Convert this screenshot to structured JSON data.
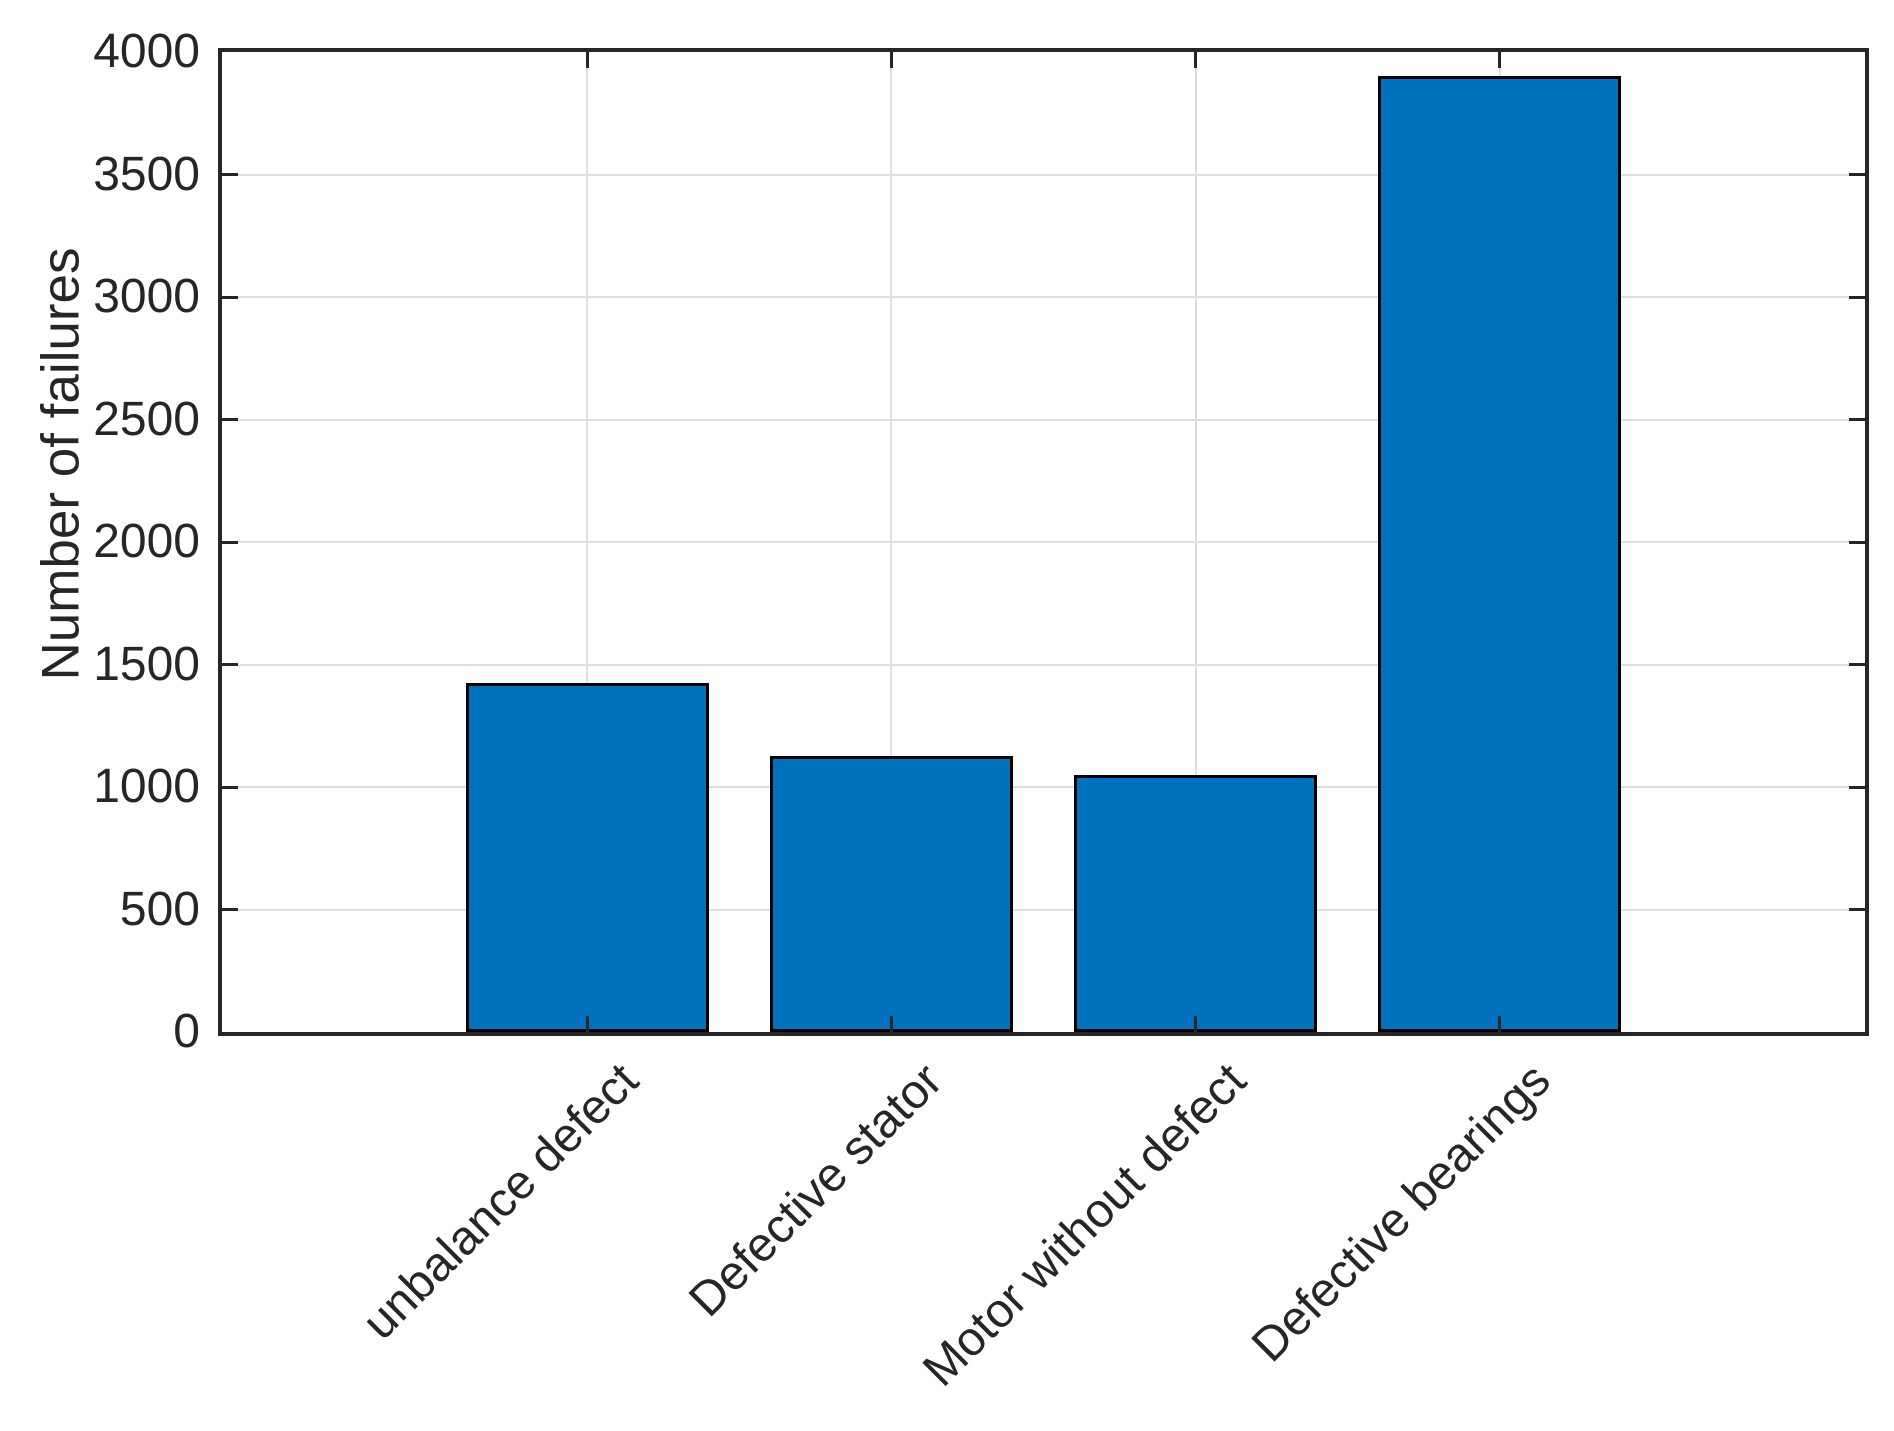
{
  "figure": {
    "background": "#ffffff"
  },
  "chart_data": {
    "type": "bar",
    "title": "",
    "xlabel": "",
    "ylabel": "Number of failures",
    "categories": [
      "unbalance defect",
      "Defective stator",
      "Motor without defect",
      "Defective bearings"
    ],
    "values": [
      1425,
      1125,
      1050,
      3900
    ],
    "ylim": [
      0,
      4000
    ],
    "ytick_interval": 500,
    "yticks": [
      0,
      500,
      1000,
      1500,
      2000,
      2500,
      3000,
      3500,
      4000
    ],
    "ytick_labels": [
      "0",
      "500",
      "1000",
      "1500",
      "2000",
      "2500",
      "3000",
      "3500",
      "4000"
    ],
    "grid": true,
    "legend_position": "none",
    "x_label_rotation_deg": 45,
    "bar_width_fraction": 0.8,
    "colors": {
      "bar_fill": "#0072BD",
      "bar_edge": "#000000",
      "axis": "#262626",
      "grid": "#dedede",
      "text": "#262626"
    }
  }
}
